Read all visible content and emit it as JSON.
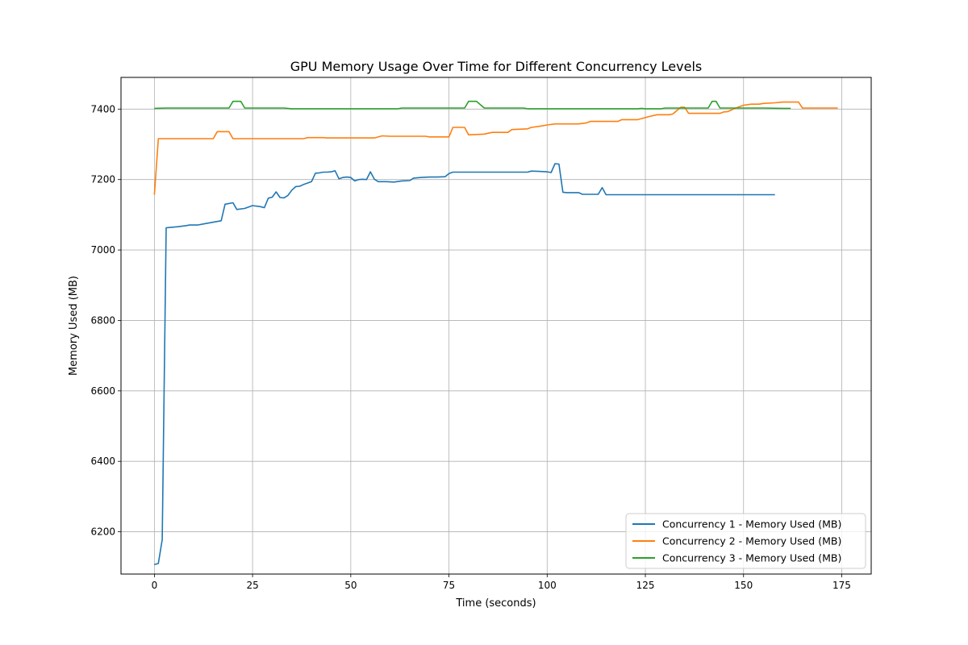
{
  "chart_data": {
    "type": "line",
    "title": "GPU Memory Usage Over Time for Different Concurrency Levels",
    "xlabel": "Time (seconds)",
    "ylabel": "Memory Used (MB)",
    "xlim": [
      -8.5,
      182.5
    ],
    "ylim": [
      6080,
      7490
    ],
    "xticks": [
      0,
      25,
      50,
      75,
      100,
      125,
      150,
      175
    ],
    "yticks": [
      6200,
      6400,
      6600,
      6800,
      7000,
      7200,
      7400
    ],
    "grid": true,
    "legend_position": "lower-right",
    "series": [
      {
        "name": "Concurrency 1 - Memory Used (MB)",
        "color": "#1f77b4",
        "points": [
          [
            0,
            6107
          ],
          [
            1,
            6110
          ],
          [
            2,
            6178
          ],
          [
            3,
            7063
          ],
          [
            4,
            7064
          ],
          [
            6,
            7066
          ],
          [
            8,
            7069
          ],
          [
            9,
            7071
          ],
          [
            11,
            7071
          ],
          [
            13,
            7075
          ],
          [
            15,
            7079
          ],
          [
            17,
            7083
          ],
          [
            18,
            7130
          ],
          [
            20,
            7134
          ],
          [
            21,
            7115
          ],
          [
            23,
            7118
          ],
          [
            25,
            7126
          ],
          [
            27,
            7123
          ],
          [
            28,
            7120
          ],
          [
            29,
            7147
          ],
          [
            30,
            7150
          ],
          [
            31,
            7165
          ],
          [
            32,
            7149
          ],
          [
            33,
            7148
          ],
          [
            34,
            7155
          ],
          [
            35,
            7170
          ],
          [
            36,
            7180
          ],
          [
            37,
            7181
          ],
          [
            38,
            7186
          ],
          [
            40,
            7194
          ],
          [
            41,
            7218
          ],
          [
            42,
            7219
          ],
          [
            43,
            7221
          ],
          [
            44,
            7221
          ],
          [
            45,
            7222
          ],
          [
            46,
            7225
          ],
          [
            47,
            7202
          ],
          [
            48,
            7206
          ],
          [
            49,
            7207
          ],
          [
            50,
            7206
          ],
          [
            51,
            7196
          ],
          [
            52,
            7200
          ],
          [
            53,
            7201
          ],
          [
            54,
            7200
          ],
          [
            55,
            7222
          ],
          [
            56,
            7201
          ],
          [
            57,
            7194
          ],
          [
            59,
            7194
          ],
          [
            61,
            7193
          ],
          [
            63,
            7196
          ],
          [
            65,
            7197
          ],
          [
            66,
            7204
          ],
          [
            68,
            7206
          ],
          [
            70,
            7207
          ],
          [
            72,
            7207
          ],
          [
            74,
            7208
          ],
          [
            75,
            7217
          ],
          [
            76,
            7221
          ],
          [
            78,
            7221
          ],
          [
            85,
            7221
          ],
          [
            94,
            7221
          ],
          [
            95,
            7221
          ],
          [
            96,
            7224
          ],
          [
            98,
            7223
          ],
          [
            100,
            7222
          ],
          [
            101,
            7220
          ],
          [
            102,
            7245
          ],
          [
            103,
            7244
          ],
          [
            104,
            7164
          ],
          [
            105,
            7163
          ],
          [
            107,
            7163
          ],
          [
            108,
            7163
          ],
          [
            109,
            7158
          ],
          [
            111,
            7158
          ],
          [
            113,
            7158
          ],
          [
            114,
            7177
          ],
          [
            115,
            7157
          ],
          [
            120,
            7157
          ],
          [
            130,
            7157
          ],
          [
            140,
            7157
          ],
          [
            150,
            7157
          ],
          [
            158,
            7157
          ]
        ]
      },
      {
        "name": "Concurrency 2 - Memory Used (MB)",
        "color": "#ff7f0e",
        "points": [
          [
            0,
            7157
          ],
          [
            1,
            7316
          ],
          [
            5,
            7316
          ],
          [
            10,
            7316
          ],
          [
            15,
            7316
          ],
          [
            16,
            7336
          ],
          [
            19,
            7336
          ],
          [
            20,
            7316
          ],
          [
            25,
            7316
          ],
          [
            30,
            7316
          ],
          [
            35,
            7316
          ],
          [
            38,
            7316
          ],
          [
            39,
            7319
          ],
          [
            43,
            7319
          ],
          [
            44,
            7318
          ],
          [
            50,
            7318
          ],
          [
            56,
            7318
          ],
          [
            58,
            7324
          ],
          [
            60,
            7323
          ],
          [
            65,
            7323
          ],
          [
            69,
            7323
          ],
          [
            70,
            7321
          ],
          [
            75,
            7321
          ],
          [
            76,
            7348
          ],
          [
            79,
            7348
          ],
          [
            80,
            7327
          ],
          [
            82,
            7328
          ],
          [
            84,
            7329
          ],
          [
            86,
            7334
          ],
          [
            90,
            7334
          ],
          [
            91,
            7342
          ],
          [
            95,
            7344
          ],
          [
            96,
            7348
          ],
          [
            98,
            7351
          ],
          [
            100,
            7355
          ],
          [
            102,
            7358
          ],
          [
            105,
            7358
          ],
          [
            108,
            7358
          ],
          [
            110,
            7361
          ],
          [
            111,
            7365
          ],
          [
            118,
            7365
          ],
          [
            119,
            7370
          ],
          [
            123,
            7370
          ],
          [
            124,
            7373
          ],
          [
            126,
            7379
          ],
          [
            128,
            7384
          ],
          [
            131,
            7384
          ],
          [
            132,
            7386
          ],
          [
            134,
            7405
          ],
          [
            135,
            7405
          ],
          [
            136,
            7388
          ],
          [
            138,
            7388
          ],
          [
            144,
            7388
          ],
          [
            145,
            7392
          ],
          [
            146,
            7393
          ],
          [
            148,
            7403
          ],
          [
            150,
            7411
          ],
          [
            152,
            7414
          ],
          [
            154,
            7414
          ],
          [
            155,
            7416
          ],
          [
            158,
            7418
          ],
          [
            160,
            7420
          ],
          [
            164,
            7420
          ],
          [
            165,
            7403
          ],
          [
            170,
            7403
          ],
          [
            174,
            7403
          ]
        ]
      },
      {
        "name": "Concurrency 3 - Memory Used (MB)",
        "color": "#2ca02c",
        "points": [
          [
            0,
            7402
          ],
          [
            3,
            7403
          ],
          [
            5,
            7403
          ],
          [
            10,
            7403
          ],
          [
            15,
            7403
          ],
          [
            19,
            7403
          ],
          [
            20,
            7422
          ],
          [
            22,
            7422
          ],
          [
            23,
            7403
          ],
          [
            30,
            7403
          ],
          [
            33,
            7403
          ],
          [
            35,
            7401
          ],
          [
            40,
            7401
          ],
          [
            50,
            7401
          ],
          [
            60,
            7401
          ],
          [
            62,
            7401
          ],
          [
            63,
            7403
          ],
          [
            70,
            7403
          ],
          [
            79,
            7403
          ],
          [
            80,
            7422
          ],
          [
            82,
            7422
          ],
          [
            84,
            7403
          ],
          [
            90,
            7403
          ],
          [
            94,
            7403
          ],
          [
            95,
            7401
          ],
          [
            105,
            7401
          ],
          [
            115,
            7401
          ],
          [
            123,
            7401
          ],
          [
            124,
            7402
          ],
          [
            125,
            7401
          ],
          [
            129,
            7401
          ],
          [
            130,
            7403
          ],
          [
            135,
            7403
          ],
          [
            141,
            7403
          ],
          [
            142,
            7422
          ],
          [
            143,
            7422
          ],
          [
            144,
            7403
          ],
          [
            150,
            7403
          ],
          [
            155,
            7403
          ],
          [
            160,
            7402
          ],
          [
            162,
            7402
          ]
        ]
      }
    ]
  }
}
